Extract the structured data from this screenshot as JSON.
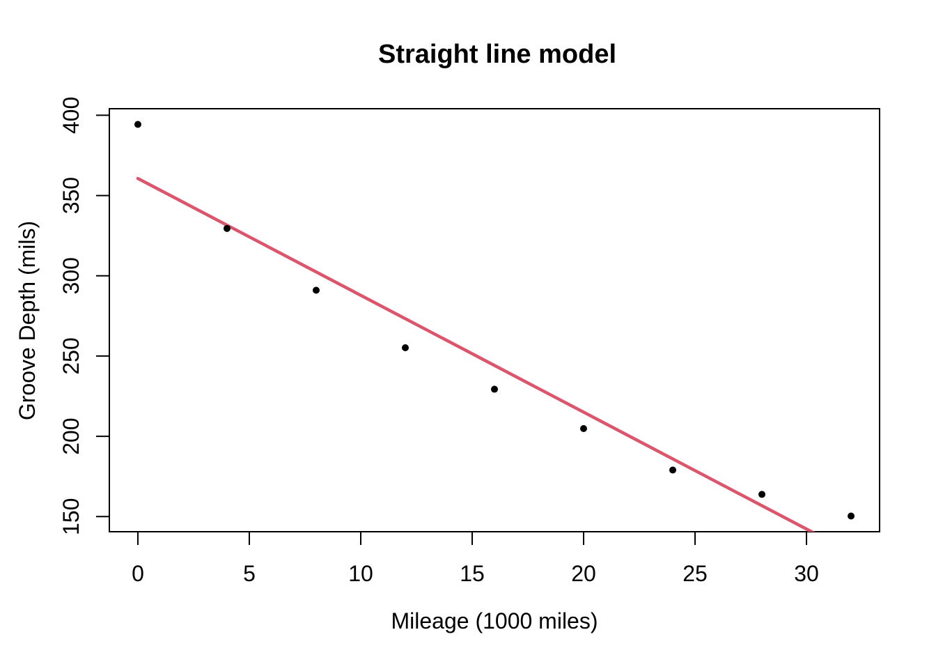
{
  "chart_data": {
    "type": "scatter",
    "title": "Straight line model",
    "xlabel": "Mileage (1000 miles)",
    "ylabel": "Groove Depth (mils)",
    "x": [
      0,
      4,
      8,
      12,
      16,
      20,
      24,
      28,
      32
    ],
    "y": [
      394.33,
      329.5,
      291.0,
      255.17,
      229.33,
      204.83,
      179.0,
      163.83,
      150.33
    ],
    "fit_line": {
      "name": "straight-line-fit",
      "intercept": 360.64,
      "slope": -7.28,
      "x_start": 0,
      "x_end": 32,
      "clipped_to_plot_area": true
    },
    "xticks": [
      0,
      5,
      10,
      15,
      20,
      25,
      30
    ],
    "yticks": [
      150,
      200,
      250,
      300,
      350,
      400
    ],
    "xlim": [
      -1.28,
      33.28
    ],
    "ylim": [
      140.57,
      404.09
    ],
    "grid": false,
    "legend": "none",
    "colors": {
      "points": "#000000",
      "fit_line": "#DF536B",
      "axis": "#000000",
      "text": "#000000",
      "background": "#FFFFFF"
    }
  }
}
